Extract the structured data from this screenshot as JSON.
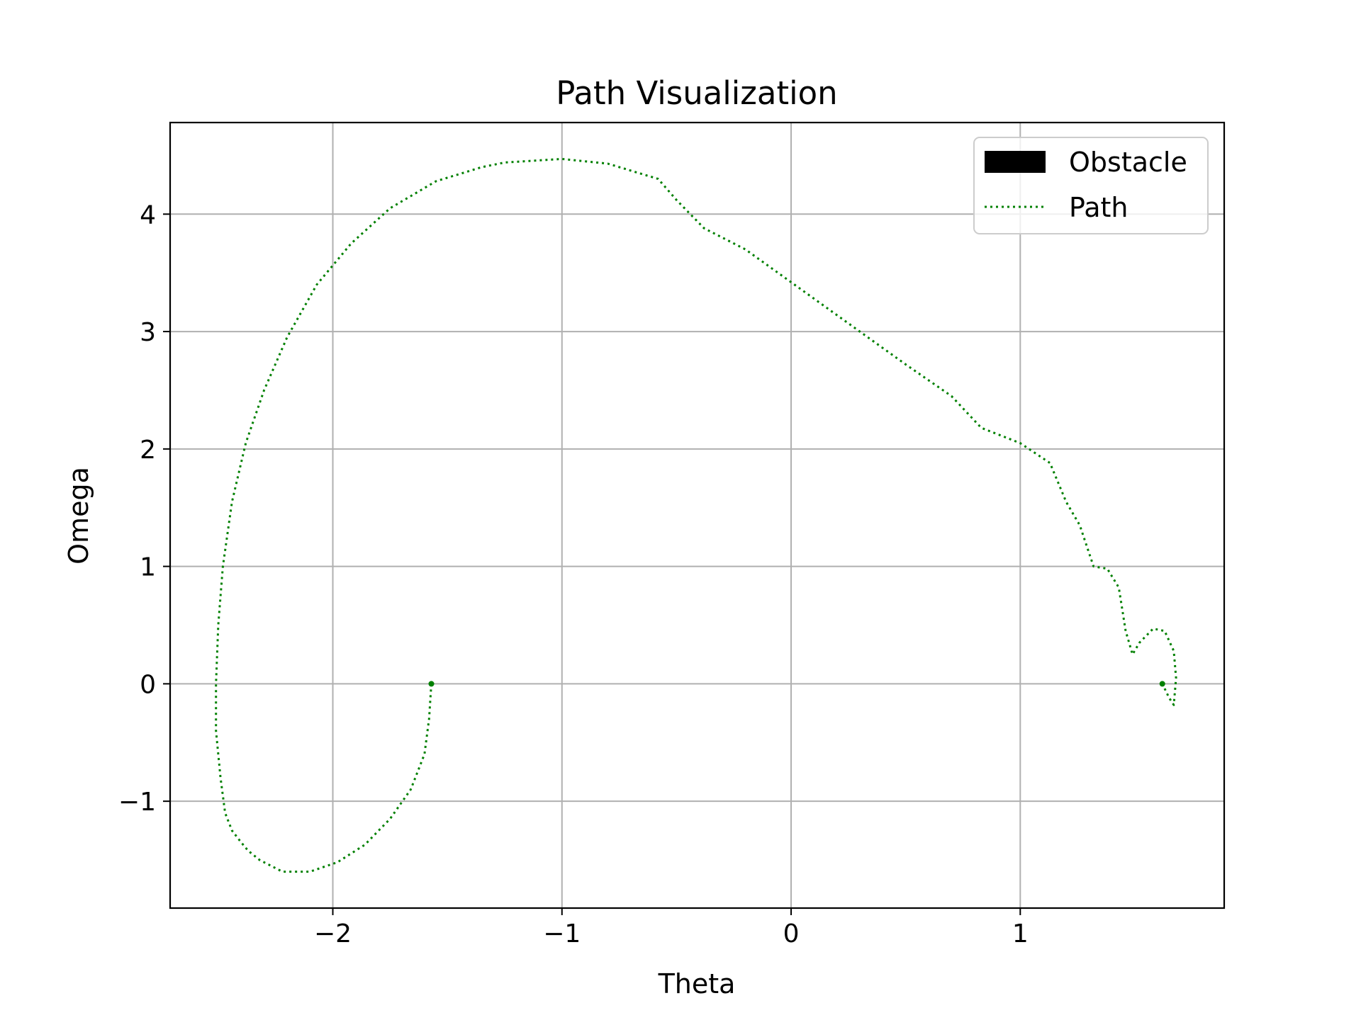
{
  "chart_data": {
    "type": "line",
    "title": "Path Visualization",
    "xlabel": "Theta",
    "ylabel": "Omega",
    "xlim": [
      -2.71,
      1.89
    ],
    "ylim": [
      -1.91,
      4.78
    ],
    "xticks": [
      -2,
      -1,
      0,
      1
    ],
    "xtick_labels": [
      "−2",
      "−1",
      "0",
      "1"
    ],
    "yticks": [
      -1,
      0,
      1,
      2,
      3,
      4
    ],
    "ytick_labels": [
      "−1",
      "0",
      "1",
      "2",
      "3",
      "4"
    ],
    "grid": true,
    "legend": {
      "placement": "upper right",
      "entries": [
        {
          "label": "Obstacle",
          "style": "patch",
          "color": "#000000"
        },
        {
          "label": "Path",
          "style": "dotted-line",
          "color": "#008000"
        }
      ]
    },
    "series": [
      {
        "name": "Path",
        "color": "#008000",
        "linestyle": "dotted",
        "points": [
          [
            -1.57,
            0.0
          ],
          [
            -1.58,
            -0.3
          ],
          [
            -1.6,
            -0.6
          ],
          [
            -1.66,
            -0.9
          ],
          [
            -1.75,
            -1.15
          ],
          [
            -1.86,
            -1.37
          ],
          [
            -1.98,
            -1.52
          ],
          [
            -2.1,
            -1.6
          ],
          [
            -2.22,
            -1.6
          ],
          [
            -2.32,
            -1.5
          ],
          [
            -2.37,
            -1.42
          ],
          [
            -2.4,
            -1.35
          ],
          [
            -2.44,
            -1.25
          ],
          [
            -2.47,
            -1.1
          ],
          [
            -2.49,
            -0.8
          ],
          [
            -2.51,
            -0.4
          ],
          [
            -2.51,
            0.0
          ],
          [
            -2.5,
            0.5
          ],
          [
            -2.48,
            1.0
          ],
          [
            -2.44,
            1.55
          ],
          [
            -2.38,
            2.05
          ],
          [
            -2.3,
            2.5
          ],
          [
            -2.2,
            2.95
          ],
          [
            -2.07,
            3.4
          ],
          [
            -1.92,
            3.75
          ],
          [
            -1.75,
            4.05
          ],
          [
            -1.55,
            4.28
          ],
          [
            -1.35,
            4.4
          ],
          [
            -1.25,
            4.44
          ],
          [
            -1.0,
            4.47
          ],
          [
            -0.8,
            4.43
          ],
          [
            -0.58,
            4.3
          ],
          [
            -0.5,
            4.12
          ],
          [
            -0.38,
            3.88
          ],
          [
            -0.2,
            3.7
          ],
          [
            0.0,
            3.42
          ],
          [
            0.3,
            3.0
          ],
          [
            0.5,
            2.72
          ],
          [
            0.7,
            2.45
          ],
          [
            0.83,
            2.18
          ],
          [
            1.0,
            2.05
          ],
          [
            1.13,
            1.88
          ],
          [
            1.2,
            1.55
          ],
          [
            1.26,
            1.35
          ],
          [
            1.32,
            1.0
          ],
          [
            1.38,
            0.98
          ],
          [
            1.43,
            0.82
          ],
          [
            1.46,
            0.45
          ],
          [
            1.49,
            0.25
          ],
          [
            1.52,
            0.35
          ],
          [
            1.58,
            0.47
          ],
          [
            1.63,
            0.45
          ],
          [
            1.67,
            0.28
          ],
          [
            1.68,
            0.05
          ],
          [
            1.67,
            -0.18
          ],
          [
            1.65,
            -0.12
          ],
          [
            1.62,
            0.0
          ]
        ]
      }
    ],
    "markers": [
      {
        "x": -1.57,
        "y": 0.0,
        "color": "#008000"
      },
      {
        "x": 1.62,
        "y": 0.0,
        "color": "#008000"
      }
    ]
  }
}
